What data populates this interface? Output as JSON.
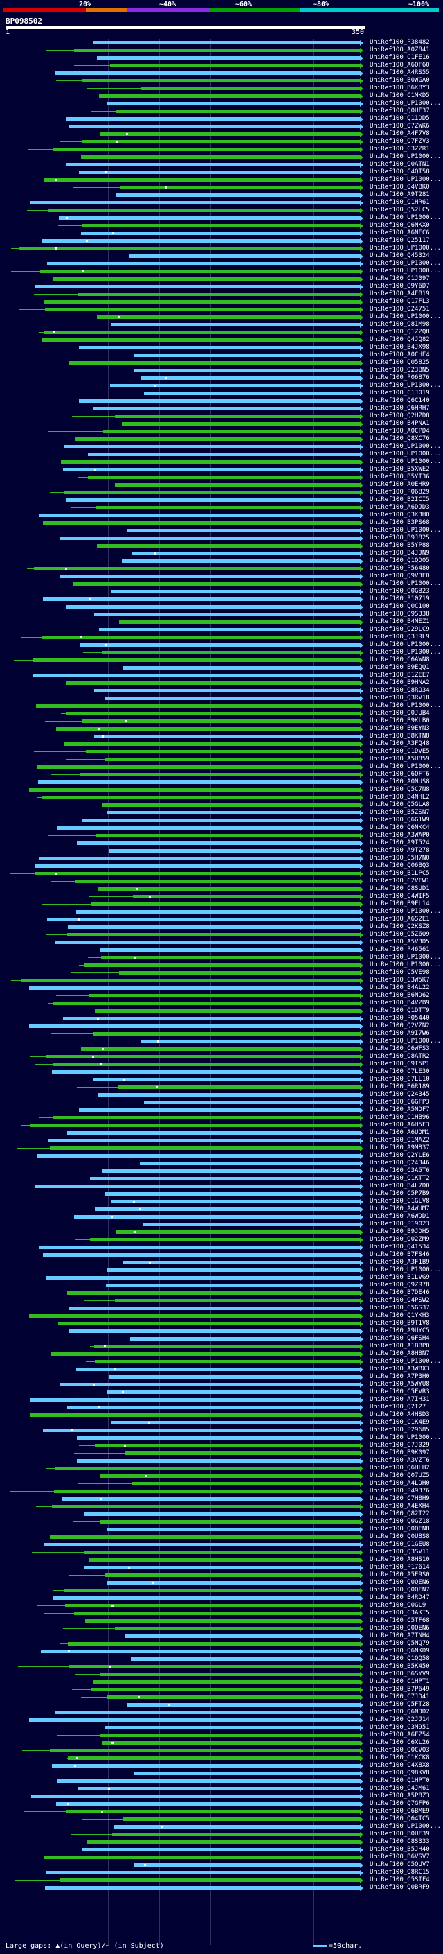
{
  "scale": {
    "labels": [
      "20%",
      "~40%",
      "~60%",
      "~80%",
      "~100%"
    ],
    "colors": [
      "#d40000",
      "#e07000",
      "#8a2be2",
      "#00a000",
      "#00cccc"
    ]
  },
  "query": {
    "id": "BP098502",
    "start": "1",
    "end": "350"
  },
  "rows": [
    "UniRef100_P38482",
    "UniRef100_A0Z841",
    "UniRef100_C1FE16",
    "UniRef100_A6QF60",
    "UniRef100_A4RS55",
    "UniRef100_B0WGA0",
    "UniRef100_B6KBY3",
    "UniRef100_C1MKD5",
    "UniRef100_UP1000...",
    "UniRef100_Q0UF37",
    "UniRef100_Q11DD5",
    "UniRef100_Q7ZWK6",
    "UniRef100_A4F7V8",
    "UniRef100_Q7FZV3",
    "UniRef100_C3ZZR1",
    "UniRef100_UP1000...",
    "UniRef100_Q0ATN1",
    "UniRef100_C4QT58",
    "UniRef100_UP1000...",
    "UniRef100_Q4VBK0",
    "UniRef100_A9T281",
    "UniRef100_Q1HR61",
    "UniRef100_Q52LC5",
    "UniRef100_UP1000...",
    "UniRef100_Q6NKX0",
    "UniRef100_A6NEC6",
    "UniRef100_Q25117",
    "UniRef100_UP1000...",
    "UniRef100_Q45324",
    "UniRef100_UP1000...",
    "UniRef100_UP1000...",
    "UniRef100_C1J097",
    "UniRef100_Q9Y6D7",
    "UniRef100_A4EB19",
    "UniRef100_Q17FL3",
    "UniRef100_Q24751",
    "UniRef100_UP1000...",
    "UniRef100_Q81M98",
    "UniRef100_Q1ZZQ8",
    "UniRef100_Q4JQ82",
    "UniRef100_B4JX98",
    "UniRef100_A0CHE4",
    "UniRef100_Q05825",
    "UniRef100_Q23BN5",
    "UniRef100_P06876",
    "UniRef100_UP1000...",
    "UniRef100_C1J019",
    "UniRef100_Q6C140",
    "UniRef100_Q6HRH7",
    "UniRef100_Q2HZD8",
    "UniRef100_B4PNA1",
    "UniRef100_A0CPD4",
    "UniRef100_Q8XC76",
    "UniRef100_UP1000...",
    "UniRef100_UP1000...",
    "UniRef100_UP1000...",
    "UniRef100_B5XWE2",
    "UniRef100_B5YI36",
    "UniRef100_A0EHR9",
    "UniRef100_P06829",
    "UniRef100_B2ICI5",
    "UniRef100_A6DJD3",
    "UniRef100_Q3K3H0",
    "UniRef100_B3PS68",
    "UniRef100_UP1000...",
    "UniRef100_B9J825",
    "UniRef100_B5YP88",
    "UniRef100_B4JJN9",
    "UniRef100_Q1QD05",
    "UniRef100_P56480",
    "UniRef100_Q9V3E0",
    "UniRef100_UP1000...",
    "UniRef100_Q0GB23",
    "UniRef100_P10719",
    "UniRef100_Q0C100",
    "UniRef100_Q9S338",
    "UniRef100_B4MEZ1",
    "UniRef100_Q29LC9",
    "UniRef100_Q3JRL9",
    "UniRef100_UP1000...",
    "UniRef100_UP1000...",
    "UniRef100_C6AWN8",
    "UniRef100_B9EQQ1",
    "UniRef100_B1ZEE7",
    "UniRef100_B9HNA2",
    "UniRef100_Q8RQ34",
    "UniRef100_Q3RV18",
    "UniRef100_UP1000...",
    "UniRef100_Q0JUB4",
    "UniRef100_B9KLB0",
    "UniRef100_B9EYN3",
    "UniRef100_B8KTN8",
    "UniRef100_A3FQ48",
    "UniRef100_C1DVE5",
    "UniRef100_A5U859",
    "UniRef100_UP1000...",
    "UniRef100_C6QFT6",
    "UniRef100_A0NUS8",
    "UniRef100_Q5C7N8",
    "UniRef100_B4NHL2",
    "UniRef100_Q5GLA8",
    "UniRef100_B5ZSN7",
    "UniRef100_Q6G1W9",
    "UniRef100_Q6NKC4",
    "UniRef100_A3WAP0",
    "UniRef100_A9T524",
    "UniRef100_A9T278",
    "UniRef100_C5H7N0",
    "UniRef100_Q06BQ3",
    "UniRef100_B1LPC5",
    "UniRef100_C2VFW1",
    "UniRef100_C8SUD1",
    "UniRef100_C4WIF5",
    "UniRef100_B9FL14",
    "UniRef100_UP1000...",
    "UniRef100_A6S2E1",
    "UniRef100_Q2KSZ8",
    "UniRef100_Q5Z6Q9",
    "UniRef100_A5V3D5",
    "UniRef100_P46561",
    "UniRef100_UP1000...",
    "UniRef100_UP1000...",
    "UniRef100_C5VE98",
    "UniRef100_C3W5K7",
    "UniRef100_B4AL22",
    "UniRef100_B6ND62",
    "UniRef100_B4VZB9",
    "UniRef100_Q1DTT9",
    "UniRef100_P05440",
    "UniRef100_Q2VZN2",
    "UniRef100_A9I7W6",
    "UniRef100_UP1000...",
    "UniRef100_C6WFS3",
    "UniRef100_Q8ATR2",
    "UniRef100_C9T5P1",
    "UniRef100_C7LE30",
    "UniRef100_C7LL10",
    "UniRef100_B6R189",
    "UniRef100_Q24345",
    "UniRef100_C6GFP3",
    "UniRef100_A5NDF7",
    "UniRef100_C1HB96",
    "UniRef100_A6H5F3",
    "UniRef100_A6UDM1",
    "UniRef100_Q1MAZ2",
    "UniRef100_A9M837",
    "UniRef100_Q2YLE6",
    "UniRef100_Q24346",
    "UniRef100_C3A5T6",
    "UniRef100_Q1KTT2",
    "UniRef100_B4L7D0",
    "UniRef100_C5P7B9",
    "UniRef100_C1GLV8",
    "UniRef100_A4WUM7",
    "UniRef100_A6WDD1",
    "UniRef100_P19023",
    "UniRef100_B9JDH5",
    "UniRef100_Q02ZM9",
    "UniRef100_Q41534",
    "UniRef100_B7FS46",
    "UniRef100_A3F1B9",
    "UniRef100_UP1000...",
    "UniRef100_B1LVG9",
    "UniRef100_Q9ZR78",
    "UniRef100_B7DE46",
    "UniRef100_Q4PSW2",
    "UniRef100_C5GS37",
    "UniRef100_Q1YKH3",
    "UniRef100_B9T1V8",
    "UniRef100_A9UYC5",
    "UniRef100_Q6FSH4",
    "UniRef100_A1BBP0",
    "UniRef100_A8H8N7",
    "UniRef100_UP1000...",
    "UniRef100_A3WBX3",
    "UniRef100_A7P3H0",
    "UniRef100_A5WYU8",
    "UniRef100_C5FVR3",
    "UniRef100_A7IH31",
    "UniRef100_Q2I27",
    "UniRef100_A4HSD3",
    "UniRef100_C1K4E9",
    "UniRef100_P29685",
    "UniRef100_UP1000...",
    "UniRef100_C7J029",
    "UniRef100_B9K097",
    "UniRef100_A3VZT6",
    "UniRef100_Q6HLH2",
    "UniRef100_Q07UZ5",
    "UniRef100_A4LDH0",
    "UniRef100_P49376",
    "UniRef100_C7H8H9",
    "UniRef100_A4EXH4",
    "UniRef100_Q82T22",
    "UniRef100_Q0GZ18",
    "UniRef100_Q0QEN8",
    "UniRef100_Q0U8S8",
    "UniRef100_Q1GEU8",
    "UniRef100_Q3SV11",
    "UniRef100_A8HS10",
    "UniRef100_P17614",
    "UniRef100_A5E9S0",
    "UniRef100_Q0QEN6",
    "UniRef100_Q0QEN7",
    "UniRef100_B4RD47",
    "UniRef100_Q0GL9",
    "UniRef100_C3AKT5",
    "UniRef100_C5TF68",
    "UniRef100_Q0QEN6",
    "UniRef100_A7TNH4",
    "UniRef100_Q5NQ79",
    "UniRef100_Q6NKD9",
    "UniRef100_Q1QQ58",
    "UniRef100_B5K450",
    "UniRef100_B6SYV9",
    "UniRef100_C1HPT1",
    "UniRef100_B7P649",
    "UniRef100_C7JD41",
    "UniRef100_Q5FT28",
    "UniRef100_Q6NDD2",
    "UniRef100_Q2JJ14",
    "UniRef100_C3M951",
    "UniRef100_A6FZ54",
    "UniRef100_C6XL26",
    "UniRef100_Q0CVQ3",
    "UniRef100_C1KCK8",
    "UniRef100_C4X8X8",
    "UniRef100_Q98KV8",
    "UniRef100_Q1HPT0",
    "UniRef100_C4JM61",
    "UniRef100_A5P8Z3",
    "UniRef100_Q7GFP6",
    "UniRef100_Q6BME9",
    "UniRef100_Q64TC5",
    "UniRef100_UP1000...",
    "UniRef100_B0UE39",
    "UniRef100_C8S333",
    "UniRef100_B5JH40",
    "UniRef100_B6VSV7",
    "UniRef100_C5QUV7",
    "UniRef100_Q8RC15",
    "UniRef100_C5SIF4",
    "UniRef100_Q0BRF9"
  ],
  "legend": {
    "gaps": "Large gaps: ▲(in Query)/~ (in Subject)",
    "unit": "=50char."
  }
}
